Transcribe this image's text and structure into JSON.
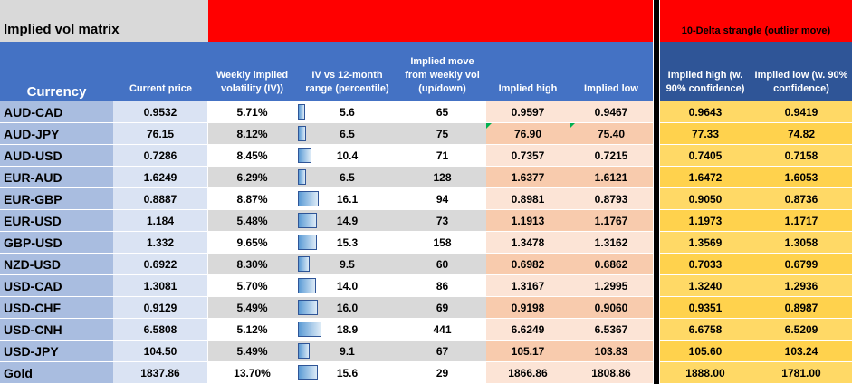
{
  "title": "Implied vol matrix",
  "strangle_title": "10-Delta strangle (outlier move)",
  "headers": {
    "currency": "Currency",
    "price": "Current price",
    "weekly_vol": "Weekly implied\nvolatility (IV))",
    "range": "IV vs  12-month\nrange (percentile)",
    "move": "Implied move\nfrom weekly vol\n(up/down)",
    "high": "Implied high",
    "low": "Implied low",
    "s_high": "Implied high (w.\n90% confidence)",
    "s_low": "Implied low (w. 90%\nconfidence)"
  },
  "colors": {
    "header_blue": "#4472c4",
    "header_dark_blue": "#2f5597",
    "banner_red": "#ff0000",
    "strangle_gold": "#ffd966",
    "high_low_peach": "#fce4d6"
  },
  "chart_data": {
    "type": "table",
    "columns": [
      "Currency",
      "Current price",
      "Weekly implied volatility (IV))",
      "IV vs  12-month range (percentile)",
      "Implied move from weekly vol (up/down)",
      "Implied high",
      "Implied low",
      "Implied high (w. 90% confidence)",
      "Implied low (w. 90% confidence)"
    ],
    "range_bar_max": 20,
    "rows": [
      {
        "currency": "AUD-CAD",
        "price": "0.9532",
        "vol": "5.71%",
        "range": "5.6",
        "move": "65",
        "high": "0.9597",
        "low": "0.9467",
        "s_high": "0.9643",
        "s_low": "0.9419",
        "flag_high": false,
        "flag_low": false
      },
      {
        "currency": "AUD-JPY",
        "price": "76.15",
        "vol": "8.12%",
        "range": "6.5",
        "move": "75",
        "high": "76.90",
        "low": "75.40",
        "s_high": "77.33",
        "s_low": "74.82",
        "flag_high": true,
        "flag_low": true
      },
      {
        "currency": "AUD-USD",
        "price": "0.7286",
        "vol": "8.45%",
        "range": "10.4",
        "move": "71",
        "high": "0.7357",
        "low": "0.7215",
        "s_high": "0.7405",
        "s_low": "0.7158",
        "flag_high": false,
        "flag_low": false
      },
      {
        "currency": "EUR-AUD",
        "price": "1.6249",
        "vol": "6.29%",
        "range": "6.5",
        "move": "128",
        "high": "1.6377",
        "low": "1.6121",
        "s_high": "1.6472",
        "s_low": "1.6053",
        "flag_high": false,
        "flag_low": false
      },
      {
        "currency": "EUR-GBP",
        "price": "0.8887",
        "vol": "8.87%",
        "range": "16.1",
        "move": "94",
        "high": "0.8981",
        "low": "0.8793",
        "s_high": "0.9050",
        "s_low": "0.8736",
        "flag_high": false,
        "flag_low": false
      },
      {
        "currency": "EUR-USD",
        "price": "1.184",
        "vol": "5.48%",
        "range": "14.9",
        "move": "73",
        "high": "1.1913",
        "low": "1.1767",
        "s_high": "1.1973",
        "s_low": "1.1717",
        "flag_high": false,
        "flag_low": false
      },
      {
        "currency": "GBP-USD",
        "price": "1.332",
        "vol": "9.65%",
        "range": "15.3",
        "move": "158",
        "high": "1.3478",
        "low": "1.3162",
        "s_high": "1.3569",
        "s_low": "1.3058",
        "flag_high": false,
        "flag_low": false
      },
      {
        "currency": "NZD-USD",
        "price": "0.6922",
        "vol": "8.30%",
        "range": "9.5",
        "move": "60",
        "high": "0.6982",
        "low": "0.6862",
        "s_high": "0.7033",
        "s_low": "0.6799",
        "flag_high": false,
        "flag_low": false
      },
      {
        "currency": "USD-CAD",
        "price": "1.3081",
        "vol": "5.70%",
        "range": "14.0",
        "move": "86",
        "high": "1.3167",
        "low": "1.2995",
        "s_high": "1.3240",
        "s_low": "1.2936",
        "flag_high": false,
        "flag_low": false
      },
      {
        "currency": "USD-CHF",
        "price": "0.9129",
        "vol": "5.49%",
        "range": "16.0",
        "move": "69",
        "high": "0.9198",
        "low": "0.9060",
        "s_high": "0.9351",
        "s_low": "0.8987",
        "flag_high": false,
        "flag_low": false
      },
      {
        "currency": "USD-CNH",
        "price": "6.5808",
        "vol": "5.12%",
        "range": "18.9",
        "move": "441",
        "high": "6.6249",
        "low": "6.5367",
        "s_high": "6.6758",
        "s_low": "6.5209",
        "flag_high": false,
        "flag_low": false
      },
      {
        "currency": "USD-JPY",
        "price": "104.50",
        "vol": "5.49%",
        "range": "9.1",
        "move": "67",
        "high": "105.17",
        "low": "103.83",
        "s_high": "105.60",
        "s_low": "103.24",
        "flag_high": false,
        "flag_low": false
      },
      {
        "currency": "Gold",
        "price": "1837.86",
        "vol": "13.70%",
        "range": "15.6",
        "move": "29",
        "high": "1866.86",
        "low": "1808.86",
        "s_high": "1888.00",
        "s_low": "1781.00",
        "flag_high": false,
        "flag_low": false
      }
    ]
  }
}
